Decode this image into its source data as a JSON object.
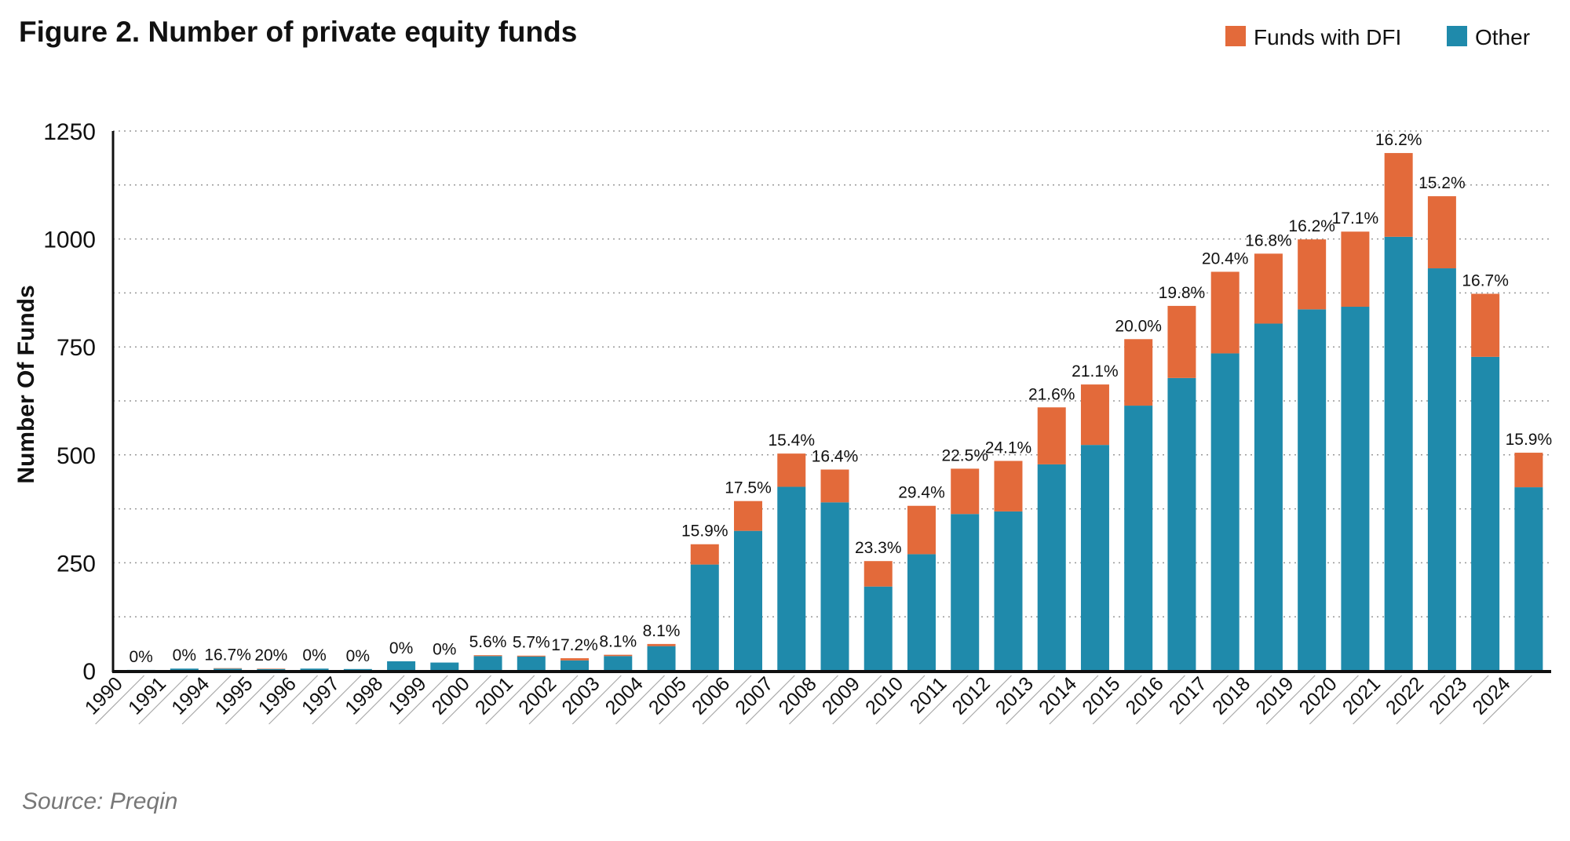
{
  "chart_data": {
    "type": "bar",
    "stacked": true,
    "title": "Figure 2. Number of private equity funds",
    "xlabel": "",
    "ylabel": "Number Of Funds",
    "ylim": [
      0,
      1250
    ],
    "yticks": [
      0,
      250,
      500,
      750,
      1000,
      1250
    ],
    "grid": true,
    "legend_placement": "top-right",
    "source": "Source: Preqin",
    "categories": [
      "1990",
      "1991",
      "1994",
      "1995",
      "1996",
      "1997",
      "1998",
      "1999",
      "2000",
      "2001",
      "2002",
      "2003",
      "2004",
      "2005",
      "2006",
      "2007",
      "2008",
      "2009",
      "2010",
      "2011",
      "2012",
      "2013",
      "2014",
      "2015",
      "2016",
      "2017",
      "2018",
      "2019",
      "2020",
      "2021",
      "2022",
      "2023",
      "2024"
    ],
    "series": [
      {
        "name": "Other",
        "color": "#1f8aab",
        "values": [
          2,
          5,
          5,
          4,
          5,
          4,
          22,
          19,
          34,
          33,
          24,
          34,
          57,
          246,
          324,
          426,
          390,
          195,
          270,
          363,
          369,
          478,
          523,
          614,
          678,
          735,
          804,
          837,
          843,
          1005,
          932,
          727,
          425
        ]
      },
      {
        "name": "Funds with DFI",
        "color": "#e36a3a",
        "values": [
          0,
          0,
          1,
          1,
          0,
          0,
          0,
          0,
          2,
          2,
          5,
          3,
          5,
          47,
          69,
          77,
          76,
          59,
          112,
          105,
          117,
          132,
          140,
          154,
          167,
          189,
          162,
          162,
          174,
          194,
          167,
          146,
          80
        ]
      }
    ],
    "data_labels": [
      "0%",
      "0%",
      "16.7%",
      "20%",
      "0%",
      "0%",
      "0%",
      "0%",
      "5.6%",
      "5.7%",
      "17.2%",
      "8.1%",
      "8.1%",
      "15.9%",
      "17.5%",
      "15.4%",
      "16.4%",
      "23.3%",
      "29.4%",
      "22.5%",
      "24.1%",
      "21.6%",
      "21.1%",
      "20.0%",
      "19.8%",
      "20.4%",
      "16.8%",
      "16.2%",
      "17.1%",
      "16.2%",
      "15.2%",
      "16.7%",
      "15.9%"
    ]
  }
}
